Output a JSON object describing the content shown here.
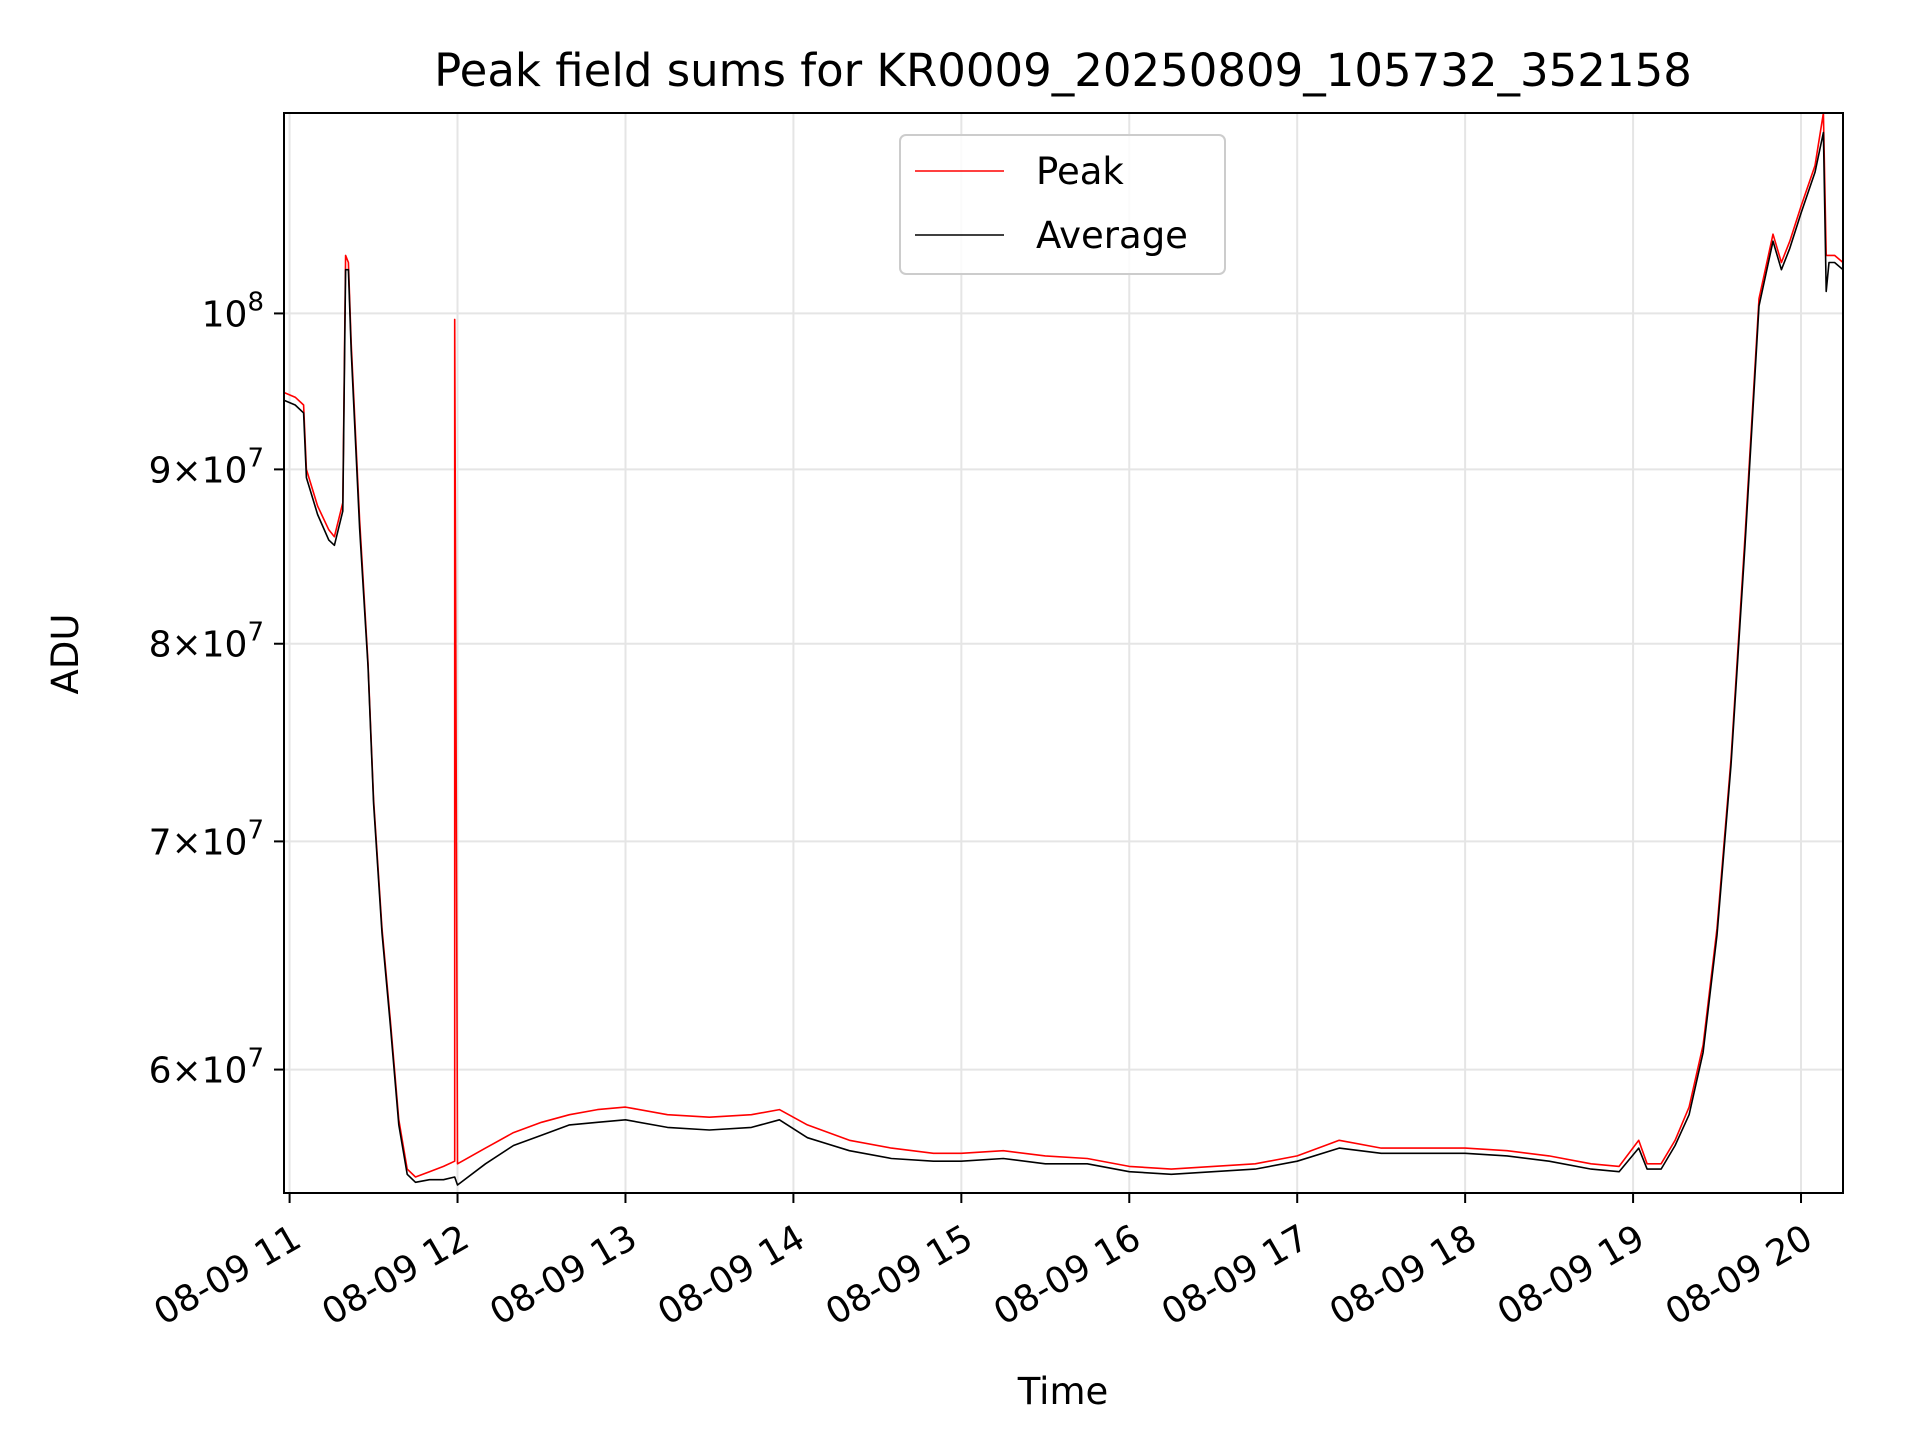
{
  "chart_data": {
    "type": "line",
    "title": "Peak field sums for KR0009_20250809_105732_352158",
    "xlabel": "Time",
    "ylabel": "ADU",
    "yscale": "log",
    "ylim": [
      55200000,
      114500000
    ],
    "xlim": [
      "2025-08-09 10:58",
      "2025-08-09 20:15"
    ],
    "grid": true,
    "legend_position": "top-center",
    "x_ticks": [
      {
        "t": "2025-08-09 11:00",
        "label": "08-09 11"
      },
      {
        "t": "2025-08-09 12:00",
        "label": "08-09 12"
      },
      {
        "t": "2025-08-09 13:00",
        "label": "08-09 13"
      },
      {
        "t": "2025-08-09 14:00",
        "label": "08-09 14"
      },
      {
        "t": "2025-08-09 15:00",
        "label": "08-09 15"
      },
      {
        "t": "2025-08-09 16:00",
        "label": "08-09 16"
      },
      {
        "t": "2025-08-09 17:00",
        "label": "08-09 17"
      },
      {
        "t": "2025-08-09 18:00",
        "label": "08-09 18"
      },
      {
        "t": "2025-08-09 19:00",
        "label": "08-09 19"
      },
      {
        "t": "2025-08-09 20:00",
        "label": "08-09 20"
      }
    ],
    "y_ticks": [
      {
        "value": 100000000,
        "mantissa": "",
        "base": "10",
        "exp": "8"
      },
      {
        "value": 90000000,
        "mantissa": "9",
        "base": "10",
        "exp": "7"
      },
      {
        "value": 80000000,
        "mantissa": "8",
        "base": "10",
        "exp": "7"
      },
      {
        "value": 70000000,
        "mantissa": "7",
        "base": "10",
        "exp": "7"
      },
      {
        "value": 60000000,
        "mantissa": "6",
        "base": "10",
        "exp": "7"
      }
    ],
    "series": [
      {
        "name": "Peak",
        "color": "#ff0000",
        "points": [
          [
            "2025-08-09 10:58",
            94800000
          ],
          [
            "2025-08-09 11:02",
            94500000
          ],
          [
            "2025-08-09 11:05",
            94000000
          ],
          [
            "2025-08-09 11:06",
            90000000
          ],
          [
            "2025-08-09 11:10",
            87800000
          ],
          [
            "2025-08-09 11:14",
            86400000
          ],
          [
            "2025-08-09 11:16",
            86000000
          ],
          [
            "2025-08-09 11:19",
            88000000
          ],
          [
            "2025-08-09 11:20",
            104000000
          ],
          [
            "2025-08-09 11:21",
            103500000
          ],
          [
            "2025-08-09 11:22",
            98000000
          ],
          [
            "2025-08-09 11:25",
            87000000
          ],
          [
            "2025-08-09 11:28",
            79000000
          ],
          [
            "2025-08-09 11:30",
            72000000
          ],
          [
            "2025-08-09 11:33",
            66000000
          ],
          [
            "2025-08-09 11:36",
            62000000
          ],
          [
            "2025-08-09 11:39",
            58000000
          ],
          [
            "2025-08-09 11:42",
            56100000
          ],
          [
            "2025-08-09 11:45",
            55800000
          ],
          [
            "2025-08-09 11:50",
            56000000
          ],
          [
            "2025-08-09 11:55",
            56200000
          ],
          [
            "2025-08-09 11:59",
            56400000
          ],
          [
            "2025-08-09 11:59",
            99600000
          ],
          [
            "2025-08-09 12:00",
            56300000
          ],
          [
            "2025-08-09 12:10",
            56900000
          ],
          [
            "2025-08-09 12:20",
            57500000
          ],
          [
            "2025-08-09 12:30",
            57900000
          ],
          [
            "2025-08-09 12:40",
            58200000
          ],
          [
            "2025-08-09 12:50",
            58400000
          ],
          [
            "2025-08-09 13:00",
            58500000
          ],
          [
            "2025-08-09 13:15",
            58200000
          ],
          [
            "2025-08-09 13:30",
            58100000
          ],
          [
            "2025-08-09 13:45",
            58200000
          ],
          [
            "2025-08-09 13:55",
            58400000
          ],
          [
            "2025-08-09 14:05",
            57800000
          ],
          [
            "2025-08-09 14:20",
            57200000
          ],
          [
            "2025-08-09 14:35",
            56900000
          ],
          [
            "2025-08-09 14:50",
            56700000
          ],
          [
            "2025-08-09 15:00",
            56700000
          ],
          [
            "2025-08-09 15:15",
            56800000
          ],
          [
            "2025-08-09 15:30",
            56600000
          ],
          [
            "2025-08-09 15:45",
            56500000
          ],
          [
            "2025-08-09 16:00",
            56200000
          ],
          [
            "2025-08-09 16:15",
            56100000
          ],
          [
            "2025-08-09 16:30",
            56200000
          ],
          [
            "2025-08-09 16:45",
            56300000
          ],
          [
            "2025-08-09 17:00",
            56600000
          ],
          [
            "2025-08-09 17:15",
            57200000
          ],
          [
            "2025-08-09 17:30",
            56900000
          ],
          [
            "2025-08-09 17:45",
            56900000
          ],
          [
            "2025-08-09 18:00",
            56900000
          ],
          [
            "2025-08-09 18:15",
            56800000
          ],
          [
            "2025-08-09 18:30",
            56600000
          ],
          [
            "2025-08-09 18:45",
            56300000
          ],
          [
            "2025-08-09 18:55",
            56200000
          ],
          [
            "2025-08-09 19:02",
            57200000
          ],
          [
            "2025-08-09 19:05",
            56300000
          ],
          [
            "2025-08-09 19:10",
            56300000
          ],
          [
            "2025-08-09 19:15",
            57200000
          ],
          [
            "2025-08-09 19:20",
            58500000
          ],
          [
            "2025-08-09 19:25",
            61000000
          ],
          [
            "2025-08-09 19:30",
            66000000
          ],
          [
            "2025-08-09 19:35",
            74000000
          ],
          [
            "2025-08-09 19:40",
            86000000
          ],
          [
            "2025-08-09 19:45",
            101000000
          ],
          [
            "2025-08-09 19:50",
            105500000
          ],
          [
            "2025-08-09 19:53",
            103500000
          ],
          [
            "2025-08-09 19:56",
            105000000
          ],
          [
            "2025-08-09 20:00",
            107500000
          ],
          [
            "2025-08-09 20:05",
            110500000
          ],
          [
            "2025-08-09 20:08",
            114500000
          ],
          [
            "2025-08-09 20:09",
            104000000
          ],
          [
            "2025-08-09 20:12",
            104000000
          ],
          [
            "2025-08-09 20:15",
            103500000
          ]
        ]
      },
      {
        "name": "Average",
        "color": "#000000",
        "points": [
          [
            "2025-08-09 10:58",
            94300000
          ],
          [
            "2025-08-09 11:02",
            94000000
          ],
          [
            "2025-08-09 11:05",
            93500000
          ],
          [
            "2025-08-09 11:06",
            89500000
          ],
          [
            "2025-08-09 11:10",
            87300000
          ],
          [
            "2025-08-09 11:14",
            85800000
          ],
          [
            "2025-08-09 11:16",
            85500000
          ],
          [
            "2025-08-09 11:19",
            87500000
          ],
          [
            "2025-08-09 11:20",
            103000000
          ],
          [
            "2025-08-09 11:21",
            103000000
          ],
          [
            "2025-08-09 11:22",
            97500000
          ],
          [
            "2025-08-09 11:25",
            86500000
          ],
          [
            "2025-08-09 11:28",
            78800000
          ],
          [
            "2025-08-09 11:30",
            71800000
          ],
          [
            "2025-08-09 11:33",
            65800000
          ],
          [
            "2025-08-09 11:36",
            61800000
          ],
          [
            "2025-08-09 11:39",
            57800000
          ],
          [
            "2025-08-09 11:42",
            55900000
          ],
          [
            "2025-08-09 11:45",
            55600000
          ],
          [
            "2025-08-09 11:50",
            55700000
          ],
          [
            "2025-08-09 11:55",
            55700000
          ],
          [
            "2025-08-09 11:59",
            55800000
          ],
          [
            "2025-08-09 12:00",
            55500000
          ],
          [
            "2025-08-09 12:10",
            56300000
          ],
          [
            "2025-08-09 12:20",
            57000000
          ],
          [
            "2025-08-09 12:30",
            57400000
          ],
          [
            "2025-08-09 12:40",
            57800000
          ],
          [
            "2025-08-09 12:50",
            57900000
          ],
          [
            "2025-08-09 13:00",
            58000000
          ],
          [
            "2025-08-09 13:15",
            57700000
          ],
          [
            "2025-08-09 13:30",
            57600000
          ],
          [
            "2025-08-09 13:45",
            57700000
          ],
          [
            "2025-08-09 13:55",
            58000000
          ],
          [
            "2025-08-09 14:05",
            57300000
          ],
          [
            "2025-08-09 14:20",
            56800000
          ],
          [
            "2025-08-09 14:35",
            56500000
          ],
          [
            "2025-08-09 14:50",
            56400000
          ],
          [
            "2025-08-09 15:00",
            56400000
          ],
          [
            "2025-08-09 15:15",
            56500000
          ],
          [
            "2025-08-09 15:30",
            56300000
          ],
          [
            "2025-08-09 15:45",
            56300000
          ],
          [
            "2025-08-09 16:00",
            56000000
          ],
          [
            "2025-08-09 16:15",
            55900000
          ],
          [
            "2025-08-09 16:30",
            56000000
          ],
          [
            "2025-08-09 16:45",
            56100000
          ],
          [
            "2025-08-09 17:00",
            56400000
          ],
          [
            "2025-08-09 17:15",
            56900000
          ],
          [
            "2025-08-09 17:30",
            56700000
          ],
          [
            "2025-08-09 17:45",
            56700000
          ],
          [
            "2025-08-09 18:00",
            56700000
          ],
          [
            "2025-08-09 18:15",
            56600000
          ],
          [
            "2025-08-09 18:30",
            56400000
          ],
          [
            "2025-08-09 18:45",
            56100000
          ],
          [
            "2025-08-09 18:55",
            56000000
          ],
          [
            "2025-08-09 19:02",
            56900000
          ],
          [
            "2025-08-09 19:05",
            56100000
          ],
          [
            "2025-08-09 19:10",
            56100000
          ],
          [
            "2025-08-09 19:15",
            57000000
          ],
          [
            "2025-08-09 19:20",
            58200000
          ],
          [
            "2025-08-09 19:25",
            60700000
          ],
          [
            "2025-08-09 19:30",
            65700000
          ],
          [
            "2025-08-09 19:35",
            73700000
          ],
          [
            "2025-08-09 19:40",
            85500000
          ],
          [
            "2025-08-09 19:45",
            100500000
          ],
          [
            "2025-08-09 19:50",
            105000000
          ],
          [
            "2025-08-09 19:53",
            103000000
          ],
          [
            "2025-08-09 19:56",
            104500000
          ],
          [
            "2025-08-09 20:00",
            107000000
          ],
          [
            "2025-08-09 20:05",
            110000000
          ],
          [
            "2025-08-09 20:08",
            113000000
          ],
          [
            "2025-08-09 20:09",
            101500000
          ],
          [
            "2025-08-09 20:10",
            103500000
          ],
          [
            "2025-08-09 20:12",
            103500000
          ],
          [
            "2025-08-09 20:15",
            103000000
          ]
        ]
      }
    ]
  }
}
